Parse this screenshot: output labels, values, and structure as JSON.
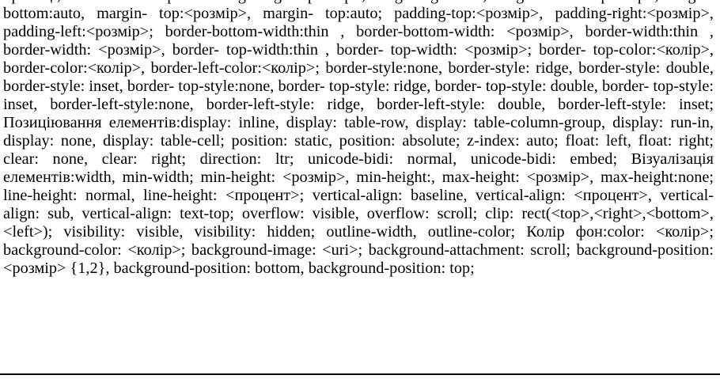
{
  "document": {
    "body_text": "Границі, заповнювачі и рамки:margin-right:<розмір>, margin-right:auto, margin-bottom:<розмір>, margin-bottom:auto, margin- top:<розмір>, margin- top:auto; padding-top:<розмір>, padding-right:<розмір>, padding-left:<розмір>; border-bottom-width:thin , border-bottom-width: <розмір>, border-width:thin , border-width: <розмір>, border- top-width:thin , border- top-width: <розмір>; border- top-color:<колір>, border-color:<колір>, border-left-color:<колір>; border-style:none, border-style: ridge, border-style: double, border-style: inset, border- top-style:none, border- top-style: ridge, border- top-style: double, border- top-style: inset, border-left-style:none, border-left-style: ridge, border-left-style: double, border-left-style: inset; Позиціювання елементів:display: inline, display: table-row, display: table-column-group, display: run-in, display: none, display: table-cell; position: static, position: absolute; z-index: auto; float: left, float: right; clear: none, clear: right; direction: ltr;  unicode-bidi: normal, unicode-bidi: embed; Візуалізація елементів:width, min-width; min-height: <розмір>, min-height:, max-height: <розмір>, max-height:none; line-height: normal, line-height: <процент>; vertical-align: baseline, vertical-align: <процент>, vertical-align: sub, vertical-align: text-top; overflow: visible, overflow: scroll; clip: rect(<top>,<right>,<bottom>,<left>); visibility: visible, visibility: hidden; outline-width, outline-color; Колір фон:color: <колір>;  background-color: <колір>; background-image: <uri>; background-attachment: scroll; background-position: <розмір> {1,2}, background-position: bottom, background-position: top;"
  }
}
